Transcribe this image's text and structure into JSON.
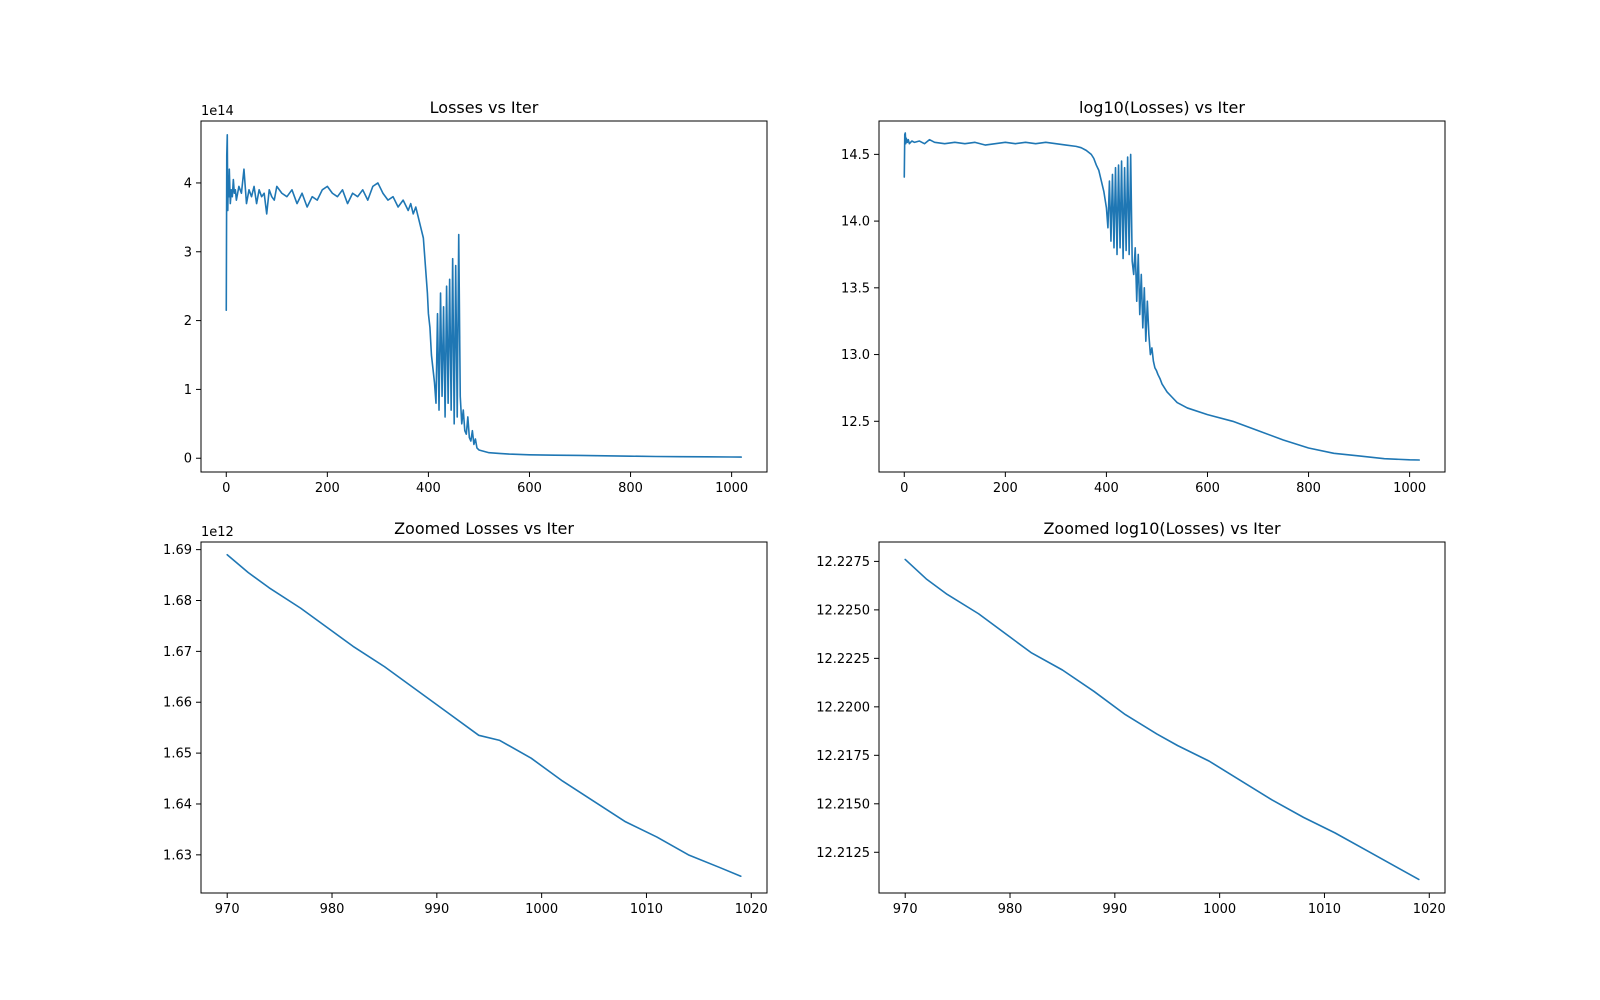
{
  "colors": {
    "series": "#1f77b4"
  },
  "chart_data": [
    {
      "type": "line",
      "title": "Losses vs Iter",
      "xlabel": "",
      "ylabel": "",
      "xlim": [
        -50,
        1070
      ],
      "ylim": [
        -0.2,
        4.9
      ],
      "y_offset_label": "1e14",
      "xticks": [
        0,
        200,
        400,
        600,
        800,
        1000
      ],
      "xtick_labels": [
        "0",
        "200",
        "400",
        "600",
        "800",
        "1000"
      ],
      "yticks": [
        0,
        1,
        2,
        3,
        4
      ],
      "ytick_labels": [
        "0",
        "1",
        "2",
        "3",
        "4"
      ],
      "grid": false,
      "series": [
        {
          "values_note": "",
          "x": [
            0,
            1,
            2,
            3,
            4,
            5,
            6,
            8,
            10,
            12,
            14,
            16,
            18,
            20,
            25,
            30,
            35,
            40,
            45,
            50,
            55,
            60,
            65,
            70,
            75,
            80,
            85,
            90,
            95,
            100,
            110,
            120,
            130,
            140,
            150,
            160,
            170,
            180,
            190,
            200,
            210,
            220,
            230,
            240,
            250,
            260,
            270,
            280,
            290,
            300,
            310,
            320,
            330,
            340,
            350,
            360,
            365,
            370,
            375,
            380,
            385,
            390,
            392,
            394,
            396,
            398,
            400,
            403,
            406,
            409,
            412,
            415,
            418,
            421,
            424,
            427,
            430,
            433,
            436,
            439,
            442,
            445,
            448,
            451,
            454,
            457,
            460,
            463,
            466,
            469,
            472,
            475,
            478,
            481,
            484,
            487,
            490,
            493,
            496,
            500,
            510,
            520,
            540,
            560,
            600,
            650,
            700,
            750,
            800,
            850,
            900,
            950,
            1000,
            1019
          ],
          "y": [
            2.15,
            4.4,
            4.7,
            3.6,
            4.1,
            3.8,
            4.2,
            3.7,
            3.9,
            3.8,
            4.05,
            3.85,
            3.9,
            3.75,
            3.95,
            3.85,
            4.2,
            3.7,
            3.9,
            3.8,
            3.95,
            3.7,
            3.9,
            3.8,
            3.85,
            3.55,
            3.9,
            3.8,
            3.75,
            3.95,
            3.85,
            3.8,
            3.9,
            3.7,
            3.85,
            3.65,
            3.8,
            3.75,
            3.9,
            3.95,
            3.85,
            3.8,
            3.9,
            3.7,
            3.85,
            3.8,
            3.9,
            3.75,
            3.95,
            4.0,
            3.85,
            3.75,
            3.8,
            3.65,
            3.75,
            3.6,
            3.7,
            3.55,
            3.65,
            3.5,
            3.35,
            3.2,
            3.0,
            2.8,
            2.6,
            2.4,
            2.1,
            1.9,
            1.5,
            1.3,
            1.1,
            0.8,
            2.1,
            0.7,
            2.4,
            0.9,
            2.2,
            0.6,
            2.5,
            0.8,
            2.6,
            0.7,
            2.9,
            0.5,
            2.8,
            0.6,
            3.25,
            0.9,
            0.5,
            0.7,
            0.4,
            0.35,
            0.6,
            0.3,
            0.25,
            0.4,
            0.2,
            0.28,
            0.15,
            0.12,
            0.1,
            0.08,
            0.07,
            0.06,
            0.05,
            0.045,
            0.04,
            0.035,
            0.03,
            0.025,
            0.022,
            0.02,
            0.018,
            0.017
          ]
        }
      ]
    },
    {
      "type": "line",
      "title": "log10(Losses) vs Iter",
      "xlabel": "",
      "ylabel": "",
      "xlim": [
        -50,
        1070
      ],
      "ylim": [
        12.12,
        14.75
      ],
      "y_offset_label": "",
      "xticks": [
        0,
        200,
        400,
        600,
        800,
        1000
      ],
      "xtick_labels": [
        "0",
        "200",
        "400",
        "600",
        "800",
        "1000"
      ],
      "yticks": [
        12.5,
        13.0,
        13.5,
        14.0,
        14.5
      ],
      "ytick_labels": [
        "12.5",
        "13.0",
        "13.5",
        "14.0",
        "14.5"
      ],
      "grid": false,
      "series": [
        {
          "x": [
            0,
            1,
            2,
            3,
            4,
            6,
            8,
            10,
            15,
            20,
            30,
            40,
            50,
            60,
            80,
            100,
            120,
            140,
            160,
            180,
            200,
            220,
            240,
            260,
            280,
            300,
            320,
            340,
            350,
            360,
            370,
            375,
            380,
            385,
            390,
            395,
            400,
            403,
            406,
            409,
            412,
            415,
            418,
            421,
            424,
            427,
            430,
            433,
            436,
            439,
            442,
            445,
            448,
            451,
            454,
            457,
            460,
            463,
            466,
            469,
            472,
            475,
            478,
            481,
            484,
            487,
            490,
            493,
            496,
            499,
            502,
            506,
            510,
            520,
            530,
            540,
            560,
            600,
            650,
            700,
            750,
            800,
            850,
            900,
            950,
            1000,
            1019
          ],
          "y": [
            14.33,
            14.65,
            14.66,
            14.58,
            14.62,
            14.59,
            14.61,
            14.58,
            14.6,
            14.59,
            14.6,
            14.58,
            14.61,
            14.59,
            14.58,
            14.59,
            14.58,
            14.59,
            14.57,
            14.58,
            14.59,
            14.58,
            14.59,
            14.58,
            14.59,
            14.58,
            14.57,
            14.56,
            14.55,
            14.53,
            14.5,
            14.47,
            14.42,
            14.38,
            14.3,
            14.22,
            14.1,
            13.95,
            14.3,
            13.85,
            14.35,
            13.8,
            14.4,
            13.75,
            14.42,
            13.8,
            14.45,
            13.72,
            14.4,
            13.78,
            14.48,
            13.75,
            14.5,
            13.7,
            13.6,
            13.8,
            13.4,
            13.75,
            13.3,
            13.6,
            13.2,
            13.5,
            13.1,
            13.4,
            13.15,
            13.0,
            13.05,
            12.95,
            12.9,
            12.88,
            12.85,
            12.82,
            12.78,
            12.72,
            12.68,
            12.64,
            12.6,
            12.55,
            12.5,
            12.43,
            12.36,
            12.3,
            12.26,
            12.24,
            12.22,
            12.211,
            12.21
          ]
        }
      ]
    },
    {
      "type": "line",
      "title": "Zoomed Losses vs Iter",
      "xlabel": "",
      "ylabel": "",
      "xlim": [
        967.5,
        1021.5
      ],
      "ylim": [
        1.6225,
        1.6915
      ],
      "y_offset_label": "1e12",
      "xticks": [
        970,
        980,
        990,
        1000,
        1010,
        1020
      ],
      "xtick_labels": [
        "970",
        "980",
        "990",
        "1000",
        "1010",
        "1020"
      ],
      "yticks": [
        1.63,
        1.64,
        1.65,
        1.66,
        1.67,
        1.68,
        1.69
      ],
      "ytick_labels": [
        "1.63",
        "1.64",
        "1.65",
        "1.66",
        "1.67",
        "1.68",
        "1.69"
      ],
      "grid": false,
      "series": [
        {
          "x": [
            970,
            972,
            974,
            977,
            980,
            982,
            985,
            988,
            991,
            994,
            996,
            999,
            1002,
            1005,
            1008,
            1011,
            1014,
            1017,
            1019
          ],
          "y": [
            1.689,
            1.6855,
            1.6825,
            1.6785,
            1.674,
            1.671,
            1.667,
            1.6625,
            1.658,
            1.6535,
            1.6525,
            1.649,
            1.6445,
            1.6405,
            1.6365,
            1.6335,
            1.63,
            1.6275,
            1.6258
          ]
        }
      ]
    },
    {
      "type": "line",
      "title": "Zoomed log10(Losses) vs Iter",
      "xlabel": "",
      "ylabel": "",
      "xlim": [
        967.5,
        1021.5
      ],
      "ylim": [
        12.2104,
        12.2285
      ],
      "y_offset_label": "",
      "xticks": [
        970,
        980,
        990,
        1000,
        1010,
        1020
      ],
      "xtick_labels": [
        "970",
        "980",
        "990",
        "1000",
        "1010",
        "1020"
      ],
      "yticks": [
        12.2125,
        12.215,
        12.2175,
        12.22,
        12.2225,
        12.225,
        12.2275
      ],
      "ytick_labels": [
        "12.2125",
        "12.2150",
        "12.2175",
        "12.2200",
        "12.2225",
        "12.2250",
        "12.2275"
      ],
      "grid": false,
      "series": [
        {
          "x": [
            970,
            972,
            974,
            977,
            980,
            982,
            985,
            988,
            991,
            994,
            996,
            999,
            1002,
            1005,
            1008,
            1011,
            1014,
            1017,
            1019
          ],
          "y": [
            12.2276,
            12.2266,
            12.2258,
            12.2248,
            12.2236,
            12.2228,
            12.2219,
            12.2208,
            12.2196,
            12.2186,
            12.218,
            12.2172,
            12.2162,
            12.2152,
            12.2143,
            12.2135,
            12.2126,
            12.2117,
            12.2111
          ]
        }
      ]
    }
  ]
}
